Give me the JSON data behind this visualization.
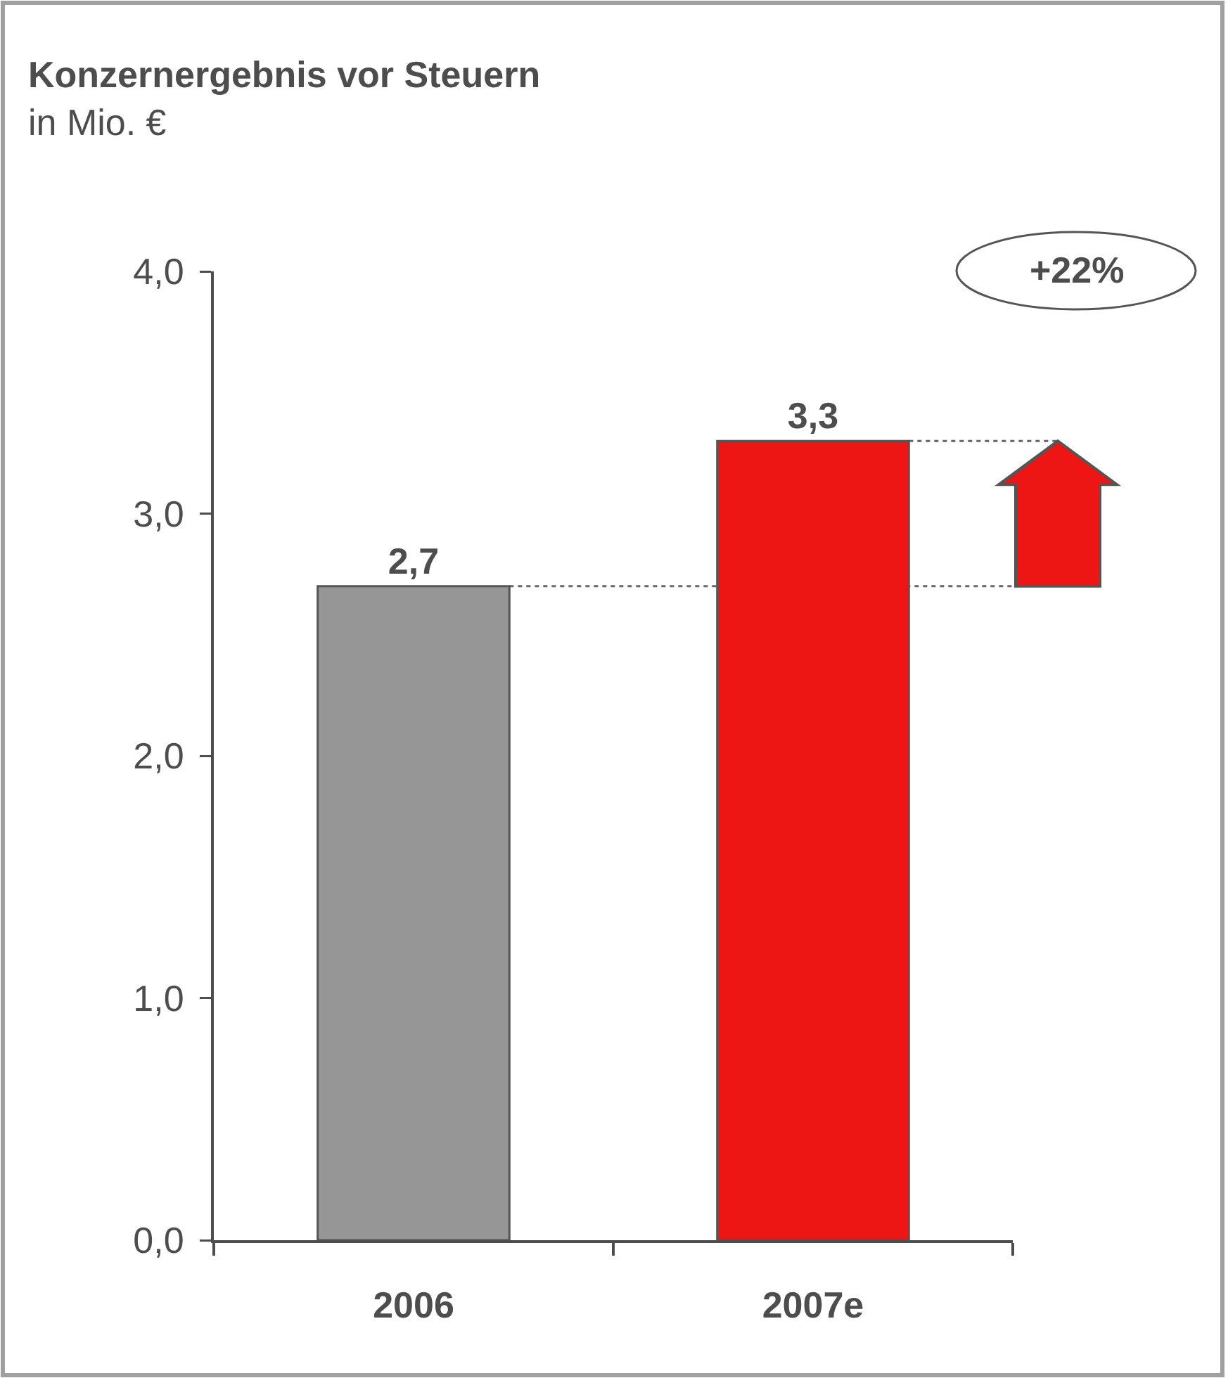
{
  "chart_data": {
    "type": "bar",
    "title": "Konzernergebnis vor Steuern",
    "subtitle": "in Mio. €",
    "categories": [
      "2006",
      "2007e"
    ],
    "values": [
      2.7,
      3.3
    ],
    "colors": [
      "#969696",
      "#ee1515"
    ],
    "value_labels": [
      "2,7",
      "3,3"
    ],
    "ylim": [
      0,
      4
    ],
    "yticks": [
      {
        "value": 0,
        "label": "0,0"
      },
      {
        "value": 1,
        "label": "1,0"
      },
      {
        "value": 2,
        "label": "2,0"
      },
      {
        "value": 3,
        "label": "3,0"
      },
      {
        "value": 4,
        "label": "4,0"
      }
    ],
    "ref_lines": [
      {
        "axis": "y",
        "value": 2.7,
        "color": "#666666",
        "line_style": "dotted"
      },
      {
        "axis": "y",
        "value": 3.3,
        "color": "#666666",
        "line_style": "dotted"
      }
    ],
    "annotations": [
      "+22%"
    ]
  }
}
